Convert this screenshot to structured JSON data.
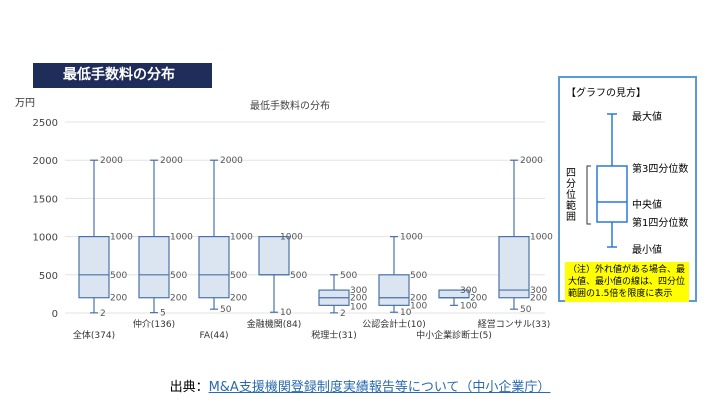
{
  "slide_title": "最低手数料の分布",
  "chart_data": {
    "type": "boxplot",
    "title": "最低手数料の分布",
    "ylabel": "万円",
    "ylim": [
      0,
      2500
    ],
    "yticks": [
      0,
      500,
      1000,
      1500,
      2000,
      2500
    ],
    "grid": true,
    "color": "#4a72a8",
    "fill": "#dbe4f1",
    "categories": [
      "全体(374)",
      "仲介(136)",
      "FA(44)",
      "金融機関(84)",
      "税理士(31)",
      "公認会計士(10)",
      "中小企業診断士(5)",
      "経営コンサル(33)"
    ],
    "series": [
      {
        "min": 2,
        "q1": 200,
        "median": 500,
        "q3": 1000,
        "max": 2000
      },
      {
        "min": 5,
        "q1": 200,
        "median": 500,
        "q3": 1000,
        "max": 2000
      },
      {
        "min": 50,
        "q1": 200,
        "median": 500,
        "q3": 1000,
        "max": 2000
      },
      {
        "min": 10,
        "q1": 500,
        "median": 500,
        "q3": 1000,
        "max": 1000
      },
      {
        "min": 2,
        "q1": 100,
        "median": 200,
        "q3": 300,
        "max": 500
      },
      {
        "min": 10,
        "q1": 100,
        "median": 200,
        "q3": 500,
        "max": 1000
      },
      {
        "min": 100,
        "q1": 200,
        "median": 200,
        "q3": 300,
        "max": 300
      },
      {
        "min": 50,
        "q1": 200,
        "median": 300,
        "q3": 1000,
        "max": 2000
      }
    ]
  },
  "legend": {
    "title": "【グラフの見方】",
    "max": "最大値",
    "q3": "第3四分位数",
    "median": "中央値",
    "q1": "第1四分位数",
    "min": "最小値",
    "iqr": "四分位範囲",
    "note": "（注）外れ値がある場合、最大値、最小値の線は、四分位範囲の1.5倍を限度に表示"
  },
  "source": {
    "prefix": "出典：",
    "link": "M&A支援機関登録制度実績報告等について（中小企業庁）"
  }
}
